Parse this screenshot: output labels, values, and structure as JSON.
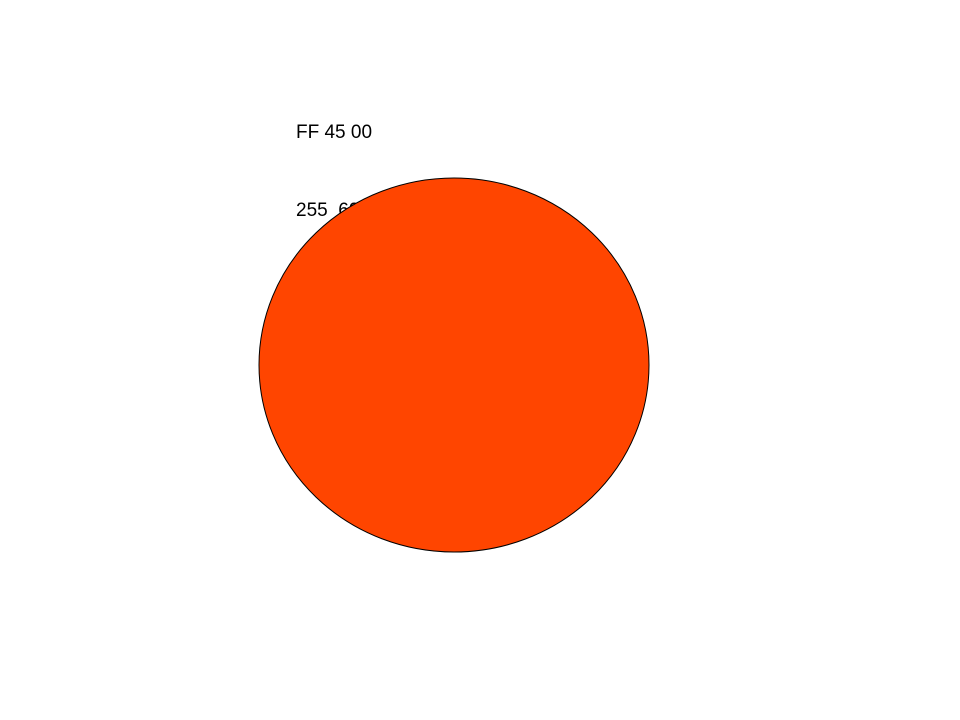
{
  "swatch": {
    "hex_label": "FF 45 00",
    "rgb_label": "255  69   0",
    "fill_color": "#FF4500",
    "outline_color": "#000000"
  }
}
